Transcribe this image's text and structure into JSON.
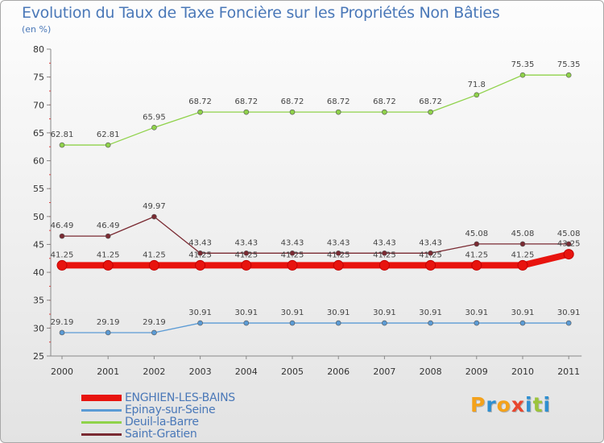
{
  "title": "Evolution du Taux de Taxe Foncière sur les Propriétés Non Bâties",
  "subtitle": "(en %)",
  "logo": {
    "letters": [
      "P",
      "r",
      "o",
      "x",
      "i",
      "t",
      "i"
    ],
    "colors": [
      "#f4a21b",
      "#2f8fd0",
      "#f4a21b",
      "#e8462e",
      "#2f8fd0",
      "#9cc43a",
      "#2f8fd0"
    ]
  },
  "chart_data": {
    "type": "line",
    "title": "Evolution du Taux de Taxe Foncière sur les Propriétés Non Bâties",
    "ylabel": "(en %)",
    "xlabel": "",
    "ylim": [
      25,
      80
    ],
    "yticks": [
      25,
      30,
      35,
      40,
      45,
      50,
      55,
      60,
      65,
      70,
      75,
      80
    ],
    "categories": [
      "2000",
      "2001",
      "2002",
      "2003",
      "2004",
      "2005",
      "2006",
      "2007",
      "2008",
      "2009",
      "2010",
      "2011"
    ],
    "grid": false,
    "legend_position": "bottom-left",
    "series": [
      {
        "name": "ENGHIEN-LES-BAINS",
        "color": "#e8140e",
        "values": [
          41.25,
          41.25,
          41.25,
          41.25,
          41.25,
          41.25,
          41.25,
          41.25,
          41.25,
          41.25,
          41.25,
          43.25
        ],
        "labels": [
          "41.25",
          "41.25",
          "41.25",
          "41.25",
          "41.25",
          "41.25",
          "41.25",
          "41.25",
          "41.25",
          "41.25",
          "41.25",
          "43.25"
        ]
      },
      {
        "name": "Epinay-sur-Seine",
        "color": "#5b9bd5",
        "values": [
          29.19,
          29.19,
          29.19,
          30.91,
          30.91,
          30.91,
          30.91,
          30.91,
          30.91,
          30.91,
          30.91,
          30.91
        ],
        "labels": [
          "29.19",
          "29.19",
          "29.19",
          "30.91",
          "30.91",
          "30.91",
          "30.91",
          "30.91",
          "30.91",
          "30.91",
          "30.91",
          "30.91"
        ]
      },
      {
        "name": "Deuil-la-Barre",
        "color": "#8fd24a",
        "values": [
          62.81,
          62.81,
          65.95,
          68.72,
          68.72,
          68.72,
          68.72,
          68.72,
          68.72,
          71.8,
          75.35,
          75.35
        ],
        "labels": [
          "62.81",
          "62.81",
          "65.95",
          "68.72",
          "68.72",
          "68.72",
          "68.72",
          "68.72",
          "68.72",
          "71.8",
          "75.35",
          "75.35"
        ]
      },
      {
        "name": "Saint-Gratien",
        "color": "#7a2a32",
        "values": [
          46.49,
          46.49,
          49.97,
          43.43,
          43.43,
          43.43,
          43.43,
          43.43,
          43.43,
          45.08,
          45.08,
          45.08
        ],
        "labels": [
          "46.49",
          "46.49",
          "49.97",
          "43.43",
          "43.43",
          "43.43",
          "43.43",
          "43.43",
          "43.43",
          "45.08",
          "45.08",
          "45.08"
        ]
      }
    ]
  }
}
